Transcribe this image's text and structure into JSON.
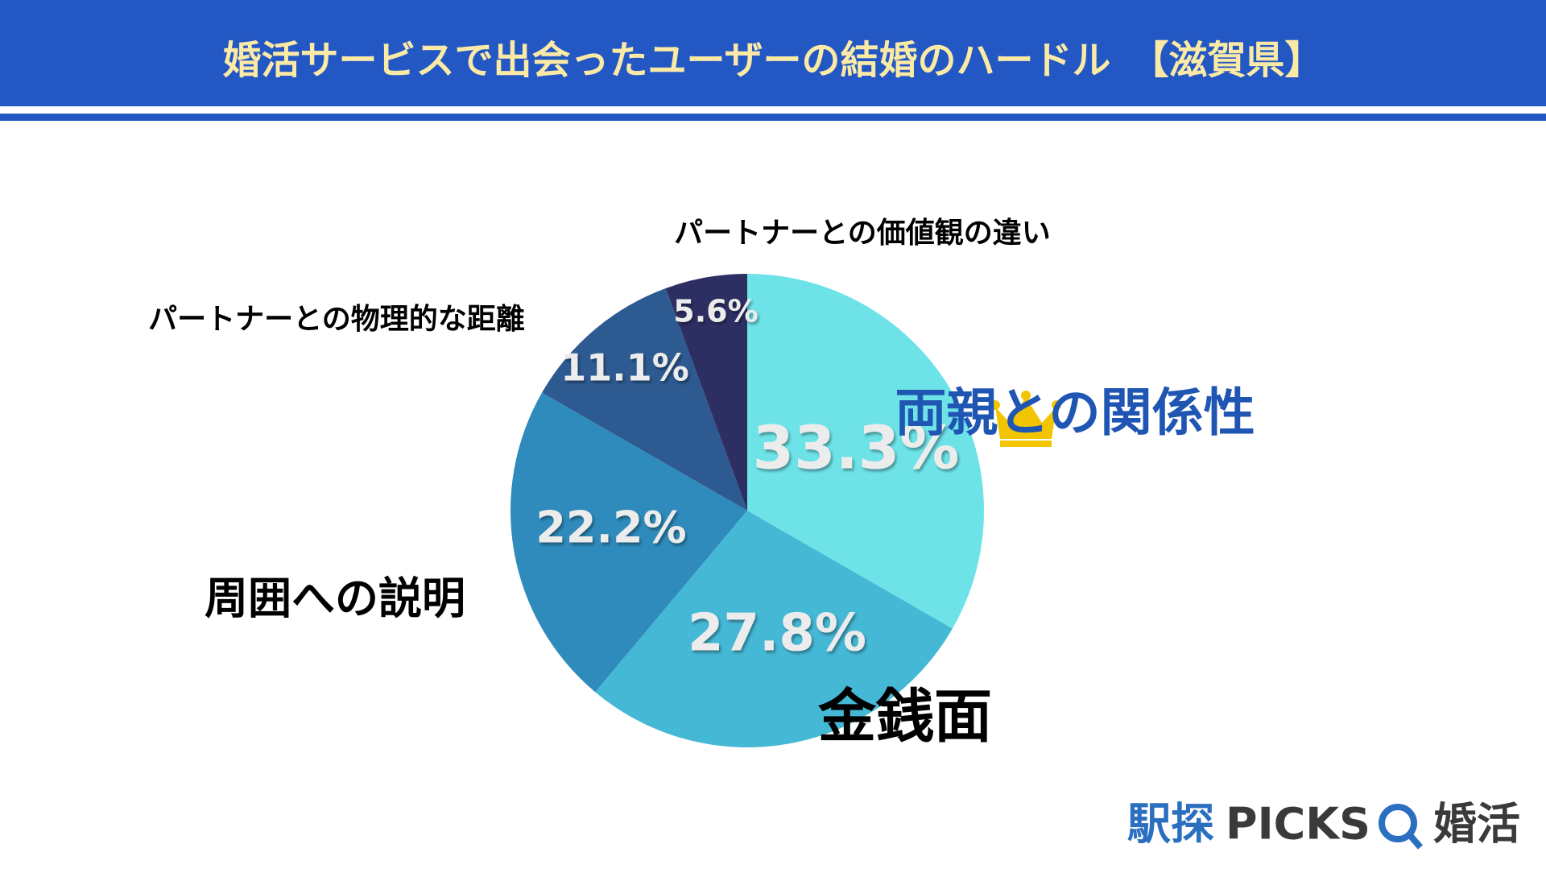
{
  "chart_data": {
    "type": "pie",
    "title": "婚活サービスで出会ったユーザーの結婚のハードル　【滋賀県】",
    "categories": [
      "両親との関係性",
      "金銭面",
      "周囲への説明",
      "パートナーとの物理的な距離",
      "パートナーとの価値観の違い"
    ],
    "values": [
      33.3,
      27.8,
      22.2,
      11.1,
      5.6
    ],
    "value_labels": [
      "33.3%",
      "27.8%",
      "22.2%",
      "11.1%",
      "5.6%"
    ],
    "colors": [
      "#6de3e8",
      "#45b8d6",
      "#2e8bbb",
      "#2d5a91",
      "#2d2f63"
    ]
  },
  "footer": {
    "brand": "駅探",
    "picks": "PICKS",
    "service": "婚活"
  }
}
